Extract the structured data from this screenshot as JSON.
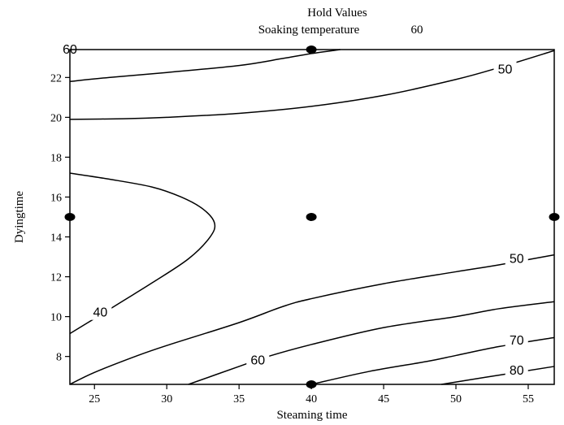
{
  "hold_values": {
    "title": "Hold Values",
    "label": "Soaking temperature",
    "value": "60"
  },
  "chart_data": {
    "type": "contour",
    "xlabel": "Steaming time",
    "ylabel": "Dyingtime",
    "xlim": [
      23.3,
      56.8
    ],
    "ylim": [
      6.6,
      23.4
    ],
    "x_ticks": [
      25,
      30,
      35,
      40,
      45,
      50,
      55
    ],
    "y_ticks": [
      8,
      10,
      12,
      14,
      16,
      18,
      20,
      22
    ],
    "contours": [
      {
        "level": "60",
        "points": [
          [
            23.3,
            21.8
          ],
          [
            26,
            22.0
          ],
          [
            30,
            22.25
          ],
          [
            35,
            22.6
          ],
          [
            38,
            22.95
          ],
          [
            40,
            23.2
          ],
          [
            42,
            23.4
          ]
        ],
        "label_at": [
          23.3,
          23.4
        ]
      },
      {
        "level": "50",
        "points": [
          [
            23.3,
            19.9
          ],
          [
            27,
            19.93
          ],
          [
            30,
            20.0
          ],
          [
            35,
            20.2
          ],
          [
            40,
            20.55
          ],
          [
            45,
            21.1
          ],
          [
            50,
            21.9
          ],
          [
            53,
            22.5
          ],
          [
            56.8,
            23.35
          ]
        ],
        "label_at": [
          53.4,
          22.4
        ]
      },
      {
        "level": "40",
        "points": [
          [
            23.3,
            17.2
          ],
          [
            26,
            16.9
          ],
          [
            29,
            16.5
          ],
          [
            31,
            16.0
          ],
          [
            32.5,
            15.4
          ],
          [
            33.3,
            14.7
          ],
          [
            33,
            14.0
          ],
          [
            31.5,
            12.9
          ],
          [
            29,
            11.7
          ],
          [
            27,
            10.8
          ],
          [
            25,
            9.9
          ],
          [
            23.3,
            9.15
          ]
        ],
        "label_at": [
          25.4,
          10.2
        ]
      },
      {
        "level": "50",
        "points": [
          [
            23.3,
            6.6
          ],
          [
            25,
            7.2
          ],
          [
            28,
            8.05
          ],
          [
            30,
            8.55
          ],
          [
            35,
            9.7
          ],
          [
            38,
            10.5
          ],
          [
            40,
            10.9
          ],
          [
            45,
            11.65
          ],
          [
            50,
            12.25
          ],
          [
            53,
            12.6
          ],
          [
            56.8,
            13.1
          ]
        ],
        "label_at": [
          54.2,
          12.9
        ]
      },
      {
        "level": "60",
        "points": [
          [
            31.5,
            6.6
          ],
          [
            35,
            7.5
          ],
          [
            37,
            8.0
          ],
          [
            40,
            8.6
          ],
          [
            45,
            9.45
          ],
          [
            50,
            10.0
          ],
          [
            53,
            10.4
          ],
          [
            56.8,
            10.75
          ]
        ],
        "label_at": [
          36.3,
          7.8
        ]
      },
      {
        "level": "70",
        "points": [
          [
            40,
            6.6
          ],
          [
            44,
            7.25
          ],
          [
            48,
            7.75
          ],
          [
            50,
            8.05
          ],
          [
            53,
            8.5
          ],
          [
            56.8,
            8.95
          ]
        ],
        "label_at": [
          54.2,
          8.8
        ]
      },
      {
        "level": "80",
        "points": [
          [
            49,
            6.6
          ],
          [
            52,
            6.95
          ],
          [
            56.8,
            7.5
          ]
        ],
        "label_at": [
          54.2,
          7.3
        ]
      }
    ],
    "design_points": [
      [
        23.3,
        15.0
      ],
      [
        40,
        15.0
      ],
      [
        56.8,
        15.0
      ],
      [
        40,
        23.4
      ],
      [
        40,
        6.6
      ]
    ]
  }
}
